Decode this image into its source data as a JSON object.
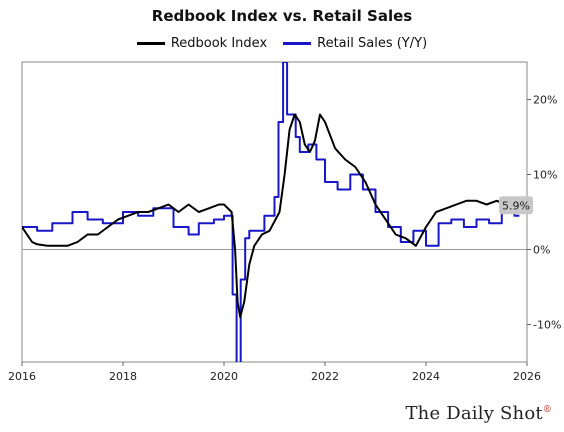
{
  "chart_data": {
    "type": "line",
    "title": "Redbook Index vs. Retail Sales",
    "xlim": [
      2016,
      2026
    ],
    "ylim": [
      -15,
      25
    ],
    "x_ticks": [
      {
        "value": 2016,
        "label": "2016"
      },
      {
        "value": 2018,
        "label": "2018"
      },
      {
        "value": 2020,
        "label": "2020"
      },
      {
        "value": 2022,
        "label": "2022"
      },
      {
        "value": 2024,
        "label": "2024"
      },
      {
        "value": 2026,
        "label": "2026"
      }
    ],
    "y_ticks": [
      {
        "value": 20,
        "label": "20%"
      },
      {
        "value": 10,
        "label": "10%"
      },
      {
        "value": 0,
        "label": "0%"
      },
      {
        "value": -10,
        "label": "-10%"
      }
    ],
    "grid": "none",
    "zero_line": true,
    "legend_position": "top-center",
    "end_label": {
      "text": "5.9%",
      "value": 5.9
    },
    "series": [
      {
        "name": "Redbook Index",
        "color": "#000000",
        "x": [
          2016.0,
          2016.1,
          2016.2,
          2016.3,
          2016.5,
          2016.7,
          2016.9,
          2017.1,
          2017.3,
          2017.5,
          2017.7,
          2017.9,
          2018.1,
          2018.3,
          2018.5,
          2018.7,
          2018.9,
          2019.1,
          2019.3,
          2019.5,
          2019.7,
          2019.9,
          2020.0,
          2020.15,
          2020.22,
          2020.27,
          2020.32,
          2020.4,
          2020.5,
          2020.6,
          2020.75,
          2020.9,
          2021.1,
          2021.2,
          2021.3,
          2021.4,
          2021.5,
          2021.6,
          2021.7,
          2021.8,
          2021.9,
          2022.0,
          2022.2,
          2022.4,
          2022.6,
          2022.8,
          2023.0,
          2023.2,
          2023.4,
          2023.6,
          2023.8,
          2024.0,
          2024.2,
          2024.4,
          2024.6,
          2024.8,
          2025.0,
          2025.2,
          2025.4,
          2025.6,
          2025.8
        ],
        "values": [
          3.0,
          2.0,
          1.0,
          0.7,
          0.5,
          0.5,
          0.5,
          1.0,
          2.0,
          2.0,
          3.0,
          4.0,
          4.5,
          5.0,
          5.0,
          5.5,
          6.0,
          5.0,
          6.0,
          5.0,
          5.5,
          6.0,
          6.0,
          5.0,
          0.0,
          -7.0,
          -9.0,
          -7.0,
          -2.0,
          0.5,
          2.0,
          2.5,
          5.0,
          10.0,
          16.0,
          18.0,
          17.0,
          14.0,
          13.0,
          14.5,
          18.0,
          17.0,
          13.5,
          12.0,
          11.0,
          9.0,
          6.0,
          4.0,
          2.0,
          1.5,
          0.5,
          3.0,
          5.0,
          5.5,
          6.0,
          6.5,
          6.5,
          6.0,
          6.5,
          6.0,
          5.9
        ]
      },
      {
        "name": "Retail Sales (Y/Y)",
        "color": "#1717c8",
        "step": true,
        "x": [
          2016.0,
          2016.3,
          2016.6,
          2017.0,
          2017.3,
          2017.6,
          2018.0,
          2018.3,
          2018.6,
          2019.0,
          2019.3,
          2019.5,
          2019.8,
          2020.0,
          2020.17,
          2020.25,
          2020.33,
          2020.42,
          2020.5,
          2020.8,
          2021.0,
          2021.08,
          2021.17,
          2021.25,
          2021.42,
          2021.5,
          2021.67,
          2021.83,
          2022.0,
          2022.25,
          2022.5,
          2022.75,
          2023.0,
          2023.25,
          2023.5,
          2023.75,
          2024.0,
          2024.25,
          2024.5,
          2024.75,
          2025.0,
          2025.25,
          2025.5,
          2025.75
        ],
        "values": [
          3.0,
          2.5,
          3.5,
          5.0,
          4.0,
          3.5,
          5.0,
          4.5,
          5.5,
          3.0,
          2.0,
          3.5,
          4.0,
          4.5,
          -6.0,
          -16.0,
          -4.0,
          1.5,
          2.5,
          4.5,
          7.0,
          17.0,
          25.0,
          18.0,
          15.0,
          13.0,
          14.0,
          12.0,
          9.0,
          8.0,
          10.0,
          8.0,
          5.0,
          3.0,
          1.0,
          2.5,
          0.5,
          3.5,
          4.0,
          3.0,
          4.0,
          3.5,
          5.0,
          4.5
        ]
      }
    ]
  },
  "brand": {
    "text": "The Daily Shot",
    "mark": "®"
  }
}
